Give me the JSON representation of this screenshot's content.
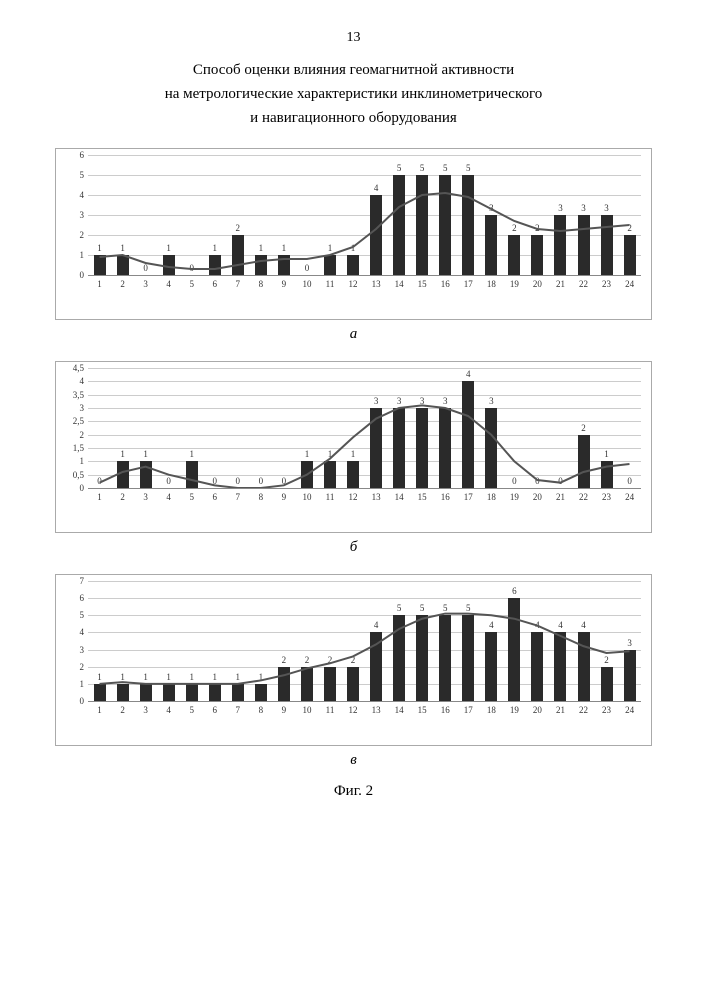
{
  "page_number": "13",
  "title_lines": [
    "Способ оценки влияния геомагнитной активности",
    "на метрологические характеристики инклинометрического",
    "и навигационного оборудования"
  ],
  "figure_label": "Фиг. 2",
  "charts": [
    {
      "sublabel": "а",
      "ymax": 6,
      "ytick_step": 1,
      "ylabels": [
        "0",
        "1",
        "2",
        "3",
        "4",
        "5",
        "6"
      ],
      "categories": [
        1,
        2,
        3,
        4,
        5,
        6,
        7,
        8,
        9,
        10,
        11,
        12,
        13,
        14,
        15,
        16,
        17,
        18,
        19,
        20,
        21,
        22,
        23,
        24
      ],
      "values": [
        1,
        1,
        0,
        1,
        0,
        1,
        2,
        1,
        1,
        0,
        1,
        1,
        4,
        5,
        5,
        5,
        5,
        3,
        2,
        2,
        3,
        3,
        3,
        2
      ],
      "curve": [
        0.9,
        1.0,
        0.6,
        0.4,
        0.3,
        0.3,
        0.5,
        0.7,
        0.8,
        0.8,
        1.0,
        1.4,
        2.3,
        3.4,
        4.0,
        4.1,
        3.9,
        3.3,
        2.7,
        2.3,
        2.2,
        2.3,
        2.4,
        2.5
      ],
      "bar_color": "#2a2a2a",
      "grid_color": "#cccccc",
      "curve_color": "#555555",
      "bg": "#ffffff",
      "label_fontsize": 9
    },
    {
      "sublabel": "б",
      "ymax": 4.5,
      "ytick_step": 0.5,
      "ylabels": [
        "0",
        "0,5",
        "1",
        "1,5",
        "2",
        "2,5",
        "3",
        "3,5",
        "4",
        "4,5"
      ],
      "categories": [
        1,
        2,
        3,
        4,
        5,
        6,
        7,
        8,
        9,
        10,
        11,
        12,
        13,
        14,
        15,
        16,
        17,
        18,
        19,
        20,
        21,
        22,
        23,
        24
      ],
      "values": [
        0,
        1,
        1,
        0,
        1,
        0,
        0,
        0,
        0,
        1,
        1,
        1,
        3,
        3,
        3,
        3,
        4,
        3,
        0,
        0,
        0,
        2,
        1,
        0
      ],
      "curve": [
        0.2,
        0.6,
        0.8,
        0.5,
        0.3,
        0.1,
        0.0,
        0.0,
        0.1,
        0.5,
        1.1,
        1.9,
        2.6,
        3.0,
        3.1,
        3.0,
        2.7,
        2.0,
        1.0,
        0.3,
        0.2,
        0.6,
        0.8,
        0.9
      ],
      "bar_color": "#2a2a2a",
      "grid_color": "#cccccc",
      "curve_color": "#555555",
      "bg": "#ffffff",
      "label_fontsize": 9
    },
    {
      "sublabel": "в",
      "ymax": 7,
      "ytick_step": 1,
      "ylabels": [
        "0",
        "1",
        "2",
        "3",
        "4",
        "5",
        "6",
        "7"
      ],
      "categories": [
        1,
        2,
        3,
        4,
        5,
        6,
        7,
        8,
        9,
        10,
        11,
        12,
        13,
        14,
        15,
        16,
        17,
        18,
        19,
        20,
        21,
        22,
        23,
        24
      ],
      "values": [
        1,
        1,
        1,
        1,
        1,
        1,
        1,
        1,
        2,
        2,
        2,
        2,
        4,
        5,
        5,
        5,
        5,
        4,
        6,
        4,
        4,
        4,
        2,
        3
      ],
      "curve": [
        1.0,
        1.1,
        1.0,
        1.0,
        1.0,
        1.0,
        1.0,
        1.2,
        1.5,
        1.9,
        2.2,
        2.6,
        3.3,
        4.2,
        4.8,
        5.1,
        5.1,
        5.0,
        4.8,
        4.4,
        3.8,
        3.2,
        2.8,
        2.9
      ],
      "bar_color": "#2a2a2a",
      "grid_color": "#cccccc",
      "curve_color": "#555555",
      "bg": "#ffffff",
      "label_fontsize": 9
    }
  ]
}
